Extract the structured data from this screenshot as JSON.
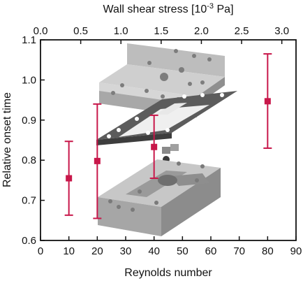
{
  "chart_data": {
    "type": "scatter",
    "title": "",
    "xlabel": "Reynolds number",
    "x2label_prefix": "Wall shear stress [10",
    "x2label_exp": "-3",
    "x2label_suffix": " Pa]",
    "ylabel": "Relative onset time",
    "xlim": [
      0,
      90
    ],
    "x2lim": [
      0,
      3.1765
    ],
    "ylim": [
      0.6,
      1.1
    ],
    "xticks": [
      "0",
      "10",
      "20",
      "30",
      "40",
      "50",
      "60",
      "70",
      "80",
      "90"
    ],
    "x2ticks": [
      "0.0",
      "0.5",
      "1.0",
      "1.5",
      "2.0",
      "2.5",
      "3.0"
    ],
    "yticks": [
      "0.6",
      "0.7",
      "0.8",
      "0.9",
      "1.0",
      "1.1"
    ],
    "grid": false,
    "series": [
      {
        "x": [
          10,
          20,
          40,
          80
        ],
        "y": [
          0.755,
          0.798,
          0.833,
          0.947
        ],
        "err_low": [
          0.663,
          0.655,
          0.755,
          0.83
        ],
        "err_high": [
          0.847,
          0.94,
          0.912,
          1.065
        ]
      }
    ]
  },
  "colors": {
    "marker": "#c8174a",
    "axis": "#111111",
    "device_top": "#c3c3c3",
    "device_side": "#9d9d9d",
    "gasket": "#6b6b6b"
  },
  "inset_image": "exploded-flow-cell-device"
}
